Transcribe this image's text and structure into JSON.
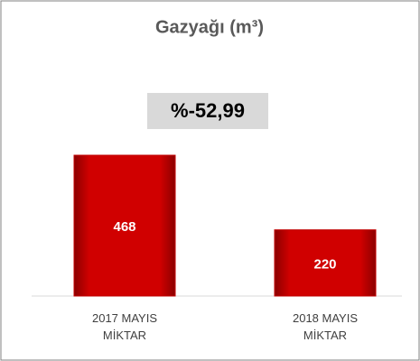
{
  "chart_data": {
    "type": "bar",
    "title": "Gazyağı (m³)",
    "annotation": "%-52,99",
    "categories": [
      "2017 MAYIS\nMİKTAR",
      "2018 MAYIS\nMİKTAR"
    ],
    "values": [
      468,
      220
    ],
    "color": "#c00000"
  }
}
